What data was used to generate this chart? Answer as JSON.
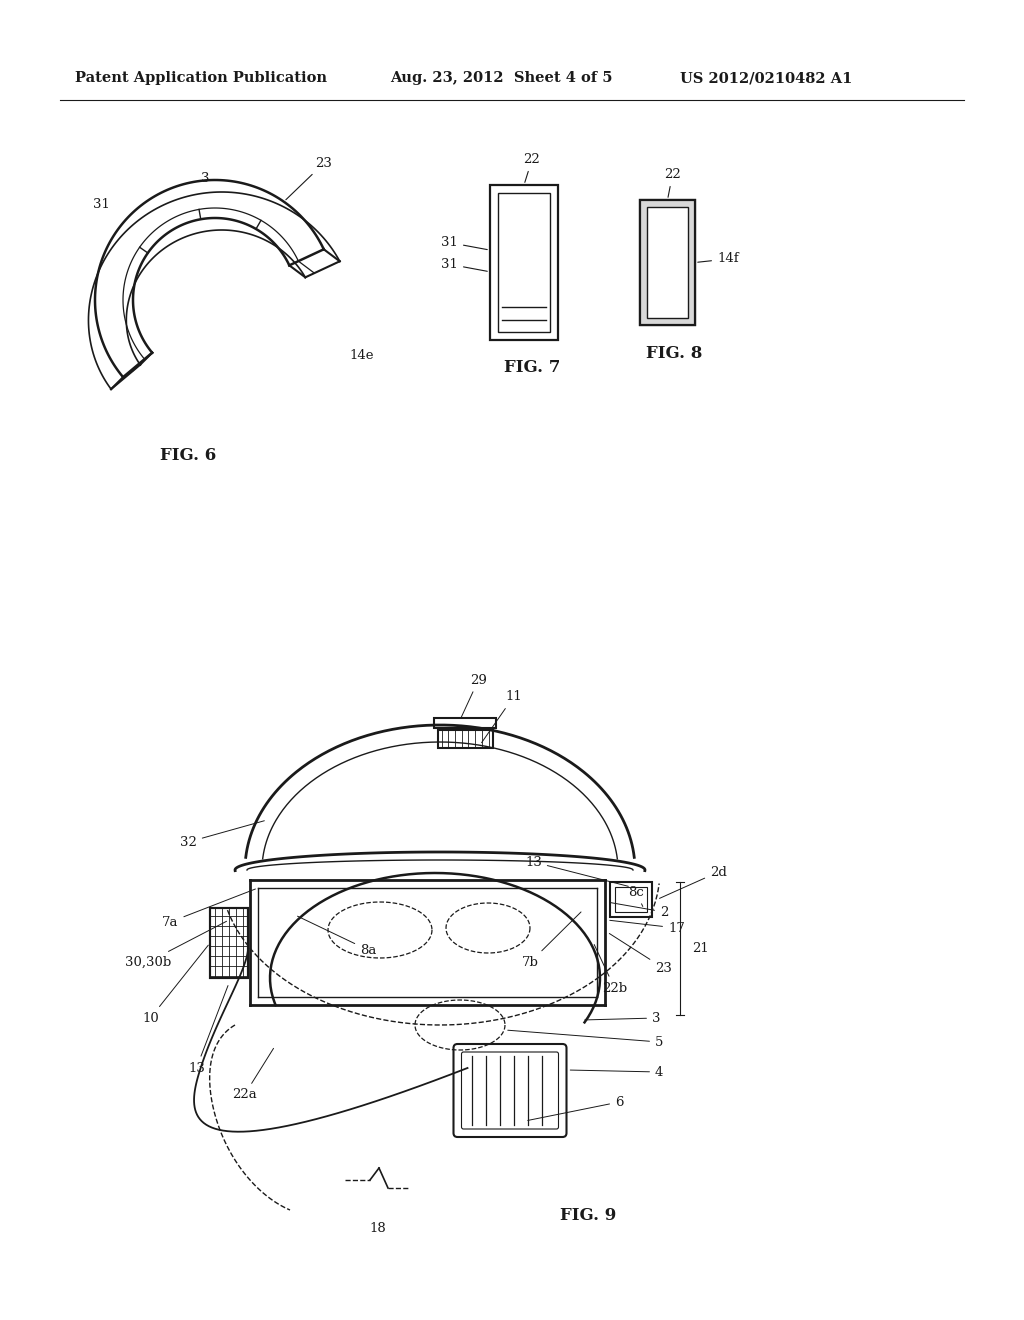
{
  "background_color": "#ffffff",
  "header_left": "Patent Application Publication",
  "header_center": "Aug. 23, 2012  Sheet 4 of 5",
  "header_right": "US 2012/0210482 A1",
  "line_color": "#1a1a1a",
  "text_color": "#1a1a1a",
  "label_fontsize": 9.5,
  "fig_label_fontsize": 12
}
